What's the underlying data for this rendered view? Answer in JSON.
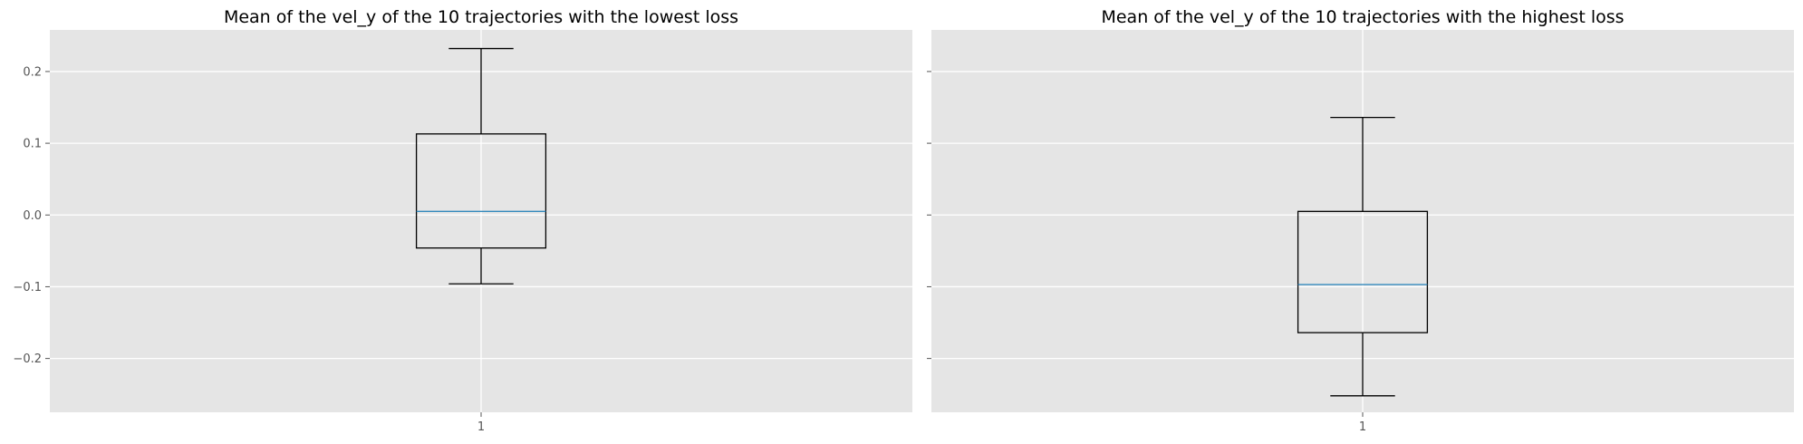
{
  "chart_data": [
    {
      "type": "boxplot",
      "title": "Mean of the vel_y of the 10 trajectories with the lowest loss",
      "xlabel": "",
      "ylabel": "",
      "categories": [
        "1"
      ],
      "box": {
        "whisker_low": -0.096,
        "q1": -0.046,
        "median": 0.005,
        "q3": 0.113,
        "whisker_high": 0.232
      },
      "ylim": [
        -0.275,
        0.258
      ],
      "yticks": [
        -0.2,
        -0.1,
        0.0,
        0.1,
        0.2
      ],
      "ytick_labels": [
        "−0.2",
        "−0.1",
        "0.0",
        "0.1",
        "0.2"
      ],
      "grid": true
    },
    {
      "type": "boxplot",
      "title": "Mean of the vel_y of the 10 trajectories with the highest loss",
      "xlabel": "",
      "ylabel": "",
      "categories": [
        "1"
      ],
      "box": {
        "whisker_low": -0.252,
        "q1": -0.164,
        "median": -0.097,
        "q3": 0.005,
        "whisker_high": 0.136
      },
      "ylim": [
        -0.275,
        0.258
      ],
      "yticks": [
        -0.2,
        -0.1,
        0.0,
        0.1,
        0.2
      ],
      "ytick_labels": [],
      "grid": true
    }
  ],
  "colors": {
    "figure_bg": "#ffffff",
    "axes_bg": "#e5e5e5",
    "grid": "#ffffff",
    "box": "#000000",
    "median": "#348abd",
    "tick_text": "#555555"
  }
}
